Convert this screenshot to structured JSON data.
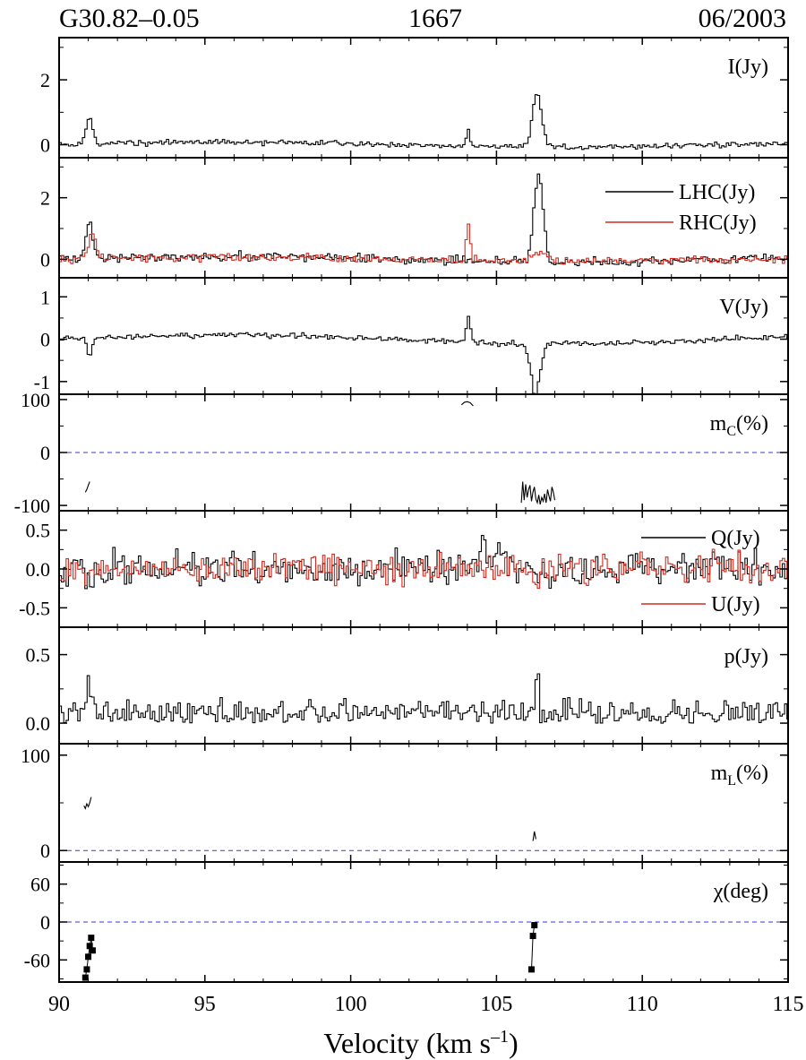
{
  "header": {
    "source": "G30.82–0.05",
    "frequency": "1667",
    "date": "06/2003"
  },
  "colors": {
    "primary": "#000000",
    "secondary": "#d42a1e",
    "zero_line": "#3a3ad0"
  },
  "chart_data": [
    {
      "type": "line",
      "panel": "I",
      "ylim": [
        -0.4,
        3.3
      ],
      "yticks": [
        0,
        2
      ],
      "ytick_labels": [
        "0",
        "2"
      ],
      "series": [
        {
          "name": "I(Jy)",
          "color": "#000000",
          "style": "step",
          "baseline": 0.0,
          "noise": 0.05,
          "drift": 0.08,
          "peaks": [
            [
              91.0,
              0.12,
              0.8
            ],
            [
              104.0,
              0.06,
              0.55
            ],
            [
              106.35,
              0.16,
              1.65
            ]
          ]
        }
      ],
      "labels": [
        {
          "text": "I(Jy)"
        }
      ]
    },
    {
      "type": "line",
      "panel": "LHC/RHC",
      "ylim": [
        -0.6,
        3.3
      ],
      "yticks": [
        0,
        2
      ],
      "ytick_labels": [
        "0",
        "2"
      ],
      "series": [
        {
          "name": "LHC(Jy)",
          "color": "#000000",
          "style": "step",
          "baseline": 0.0,
          "noise": 0.09,
          "drift": 0.1,
          "peaks": [
            [
              91.0,
              0.12,
              1.2
            ],
            [
              106.4,
              0.16,
              2.9
            ]
          ]
        },
        {
          "name": "RHC(Jy)",
          "color": "#d42a1e",
          "style": "step",
          "baseline": 0.0,
          "noise": 0.08,
          "drift": 0.05,
          "peaks": [
            [
              91.1,
              0.12,
              0.9
            ],
            [
              104.0,
              0.07,
              1.15
            ],
            [
              106.4,
              0.2,
              0.3
            ]
          ]
        }
      ],
      "legend": "top-right"
    },
    {
      "type": "line",
      "panel": "V",
      "ylim": [
        -1.3,
        1.45
      ],
      "yticks": [
        -1,
        0,
        1
      ],
      "ytick_labels": [
        "-1",
        "0",
        "1"
      ],
      "series": [
        {
          "name": "V(Jy)",
          "color": "#000000",
          "style": "step",
          "baseline": 0.0,
          "noise": 0.04,
          "drift": 0.1,
          "peaks": [
            [
              91.0,
              0.08,
              -0.4
            ],
            [
              104.0,
              0.07,
              0.6
            ],
            [
              106.3,
              0.16,
              -1.2
            ]
          ]
        }
      ],
      "labels": [
        {
          "text": "V(Jy)"
        }
      ]
    },
    {
      "type": "line",
      "panel": "mC",
      "ylim": [
        -110,
        110
      ],
      "yticks": [
        -100,
        0,
        100
      ],
      "ytick_labels": [
        "-100",
        "0",
        "100"
      ],
      "zero_line": 0,
      "series": [
        {
          "name": "mC1",
          "color": "#000000",
          "style": "line",
          "x": [
            90.9,
            90.95,
            91.0,
            91.05
          ],
          "y": [
            -75,
            -70,
            -62,
            -55
          ]
        },
        {
          "name": "mC2",
          "color": "#000000",
          "style": "line",
          "x": [
            103.8,
            103.9,
            104.0,
            104.1,
            104.2
          ],
          "y": [
            90,
            95,
            96,
            94,
            88
          ]
        },
        {
          "name": "mC3",
          "color": "#000000",
          "style": "line",
          "x": [
            105.85,
            105.9,
            105.95,
            106.0,
            106.05,
            106.1,
            106.15,
            106.2,
            106.25,
            106.3,
            106.35,
            106.4,
            106.45,
            106.5,
            106.55,
            106.6,
            106.65,
            106.7,
            106.75,
            106.8,
            106.85,
            106.9,
            106.95,
            107.0
          ],
          "y": [
            -95,
            -55,
            -90,
            -60,
            -85,
            -70,
            -62,
            -92,
            -75,
            -65,
            -88,
            -95,
            -80,
            -98,
            -85,
            -92,
            -78,
            -95,
            -70,
            -82,
            -92,
            -65,
            -75,
            -90
          ]
        }
      ],
      "labels": [
        {
          "text": "m",
          "sub": "C",
          "suffix": "(%)"
        }
      ]
    },
    {
      "type": "line",
      "panel": "Q/U",
      "ylim": [
        -0.75,
        0.75
      ],
      "yticks": [
        -0.5,
        0.0,
        0.5
      ],
      "ytick_labels": [
        "-0.5",
        "0.0",
        "0.5"
      ],
      "series": [
        {
          "name": "Q(Jy)",
          "color": "#000000",
          "style": "step",
          "baseline": 0.0,
          "noise": 0.14,
          "drift": 0.0,
          "peaks": [
            [
              91.0,
              0.1,
              -0.3
            ],
            [
              104.8,
              0.5,
              0.2
            ]
          ]
        },
        {
          "name": "U(Jy)",
          "color": "#d42a1e",
          "style": "step",
          "baseline": 0.0,
          "noise": 0.12,
          "drift": 0.0,
          "peaks": [
            [
              106.3,
              0.08,
              -0.35
            ]
          ]
        }
      ],
      "legend": "right"
    },
    {
      "type": "line",
      "panel": "p",
      "ylim": [
        -0.15,
        0.7
      ],
      "yticks": [
        0.0,
        0.5
      ],
      "ytick_labels": [
        "0.0",
        "0.5"
      ],
      "series": [
        {
          "name": "p(Jy)",
          "color": "#000000",
          "style": "step",
          "baseline": 0.07,
          "noise": 0.06,
          "drift": 0.0,
          "positive": true,
          "peaks": [
            [
              91.0,
              0.1,
              0.22
            ],
            [
              106.35,
              0.06,
              0.32
            ]
          ]
        }
      ],
      "labels": [
        {
          "text": "p(Jy)"
        }
      ]
    },
    {
      "type": "line",
      "panel": "mL",
      "ylim": [
        -12,
        112
      ],
      "yticks": [
        0,
        100
      ],
      "ytick_labels": [
        "0",
        "100"
      ],
      "zero_line": 0,
      "series": [
        {
          "name": "mL1",
          "color": "#000000",
          "style": "line",
          "x": [
            90.85,
            90.9,
            90.95,
            91.0,
            91.05,
            91.1
          ],
          "y": [
            47,
            44,
            49,
            46,
            50,
            56
          ]
        },
        {
          "name": "mL2",
          "color": "#000000",
          "style": "line",
          "x": [
            106.25,
            106.3,
            106.35
          ],
          "y": [
            10,
            20,
            12
          ]
        }
      ],
      "labels": [
        {
          "text": "m",
          "sub": "L",
          "suffix": "(%)"
        }
      ]
    },
    {
      "type": "scatter",
      "panel": "chi",
      "ylim": [
        -95,
        95
      ],
      "yticks": [
        -60,
        0,
        60
      ],
      "ytick_labels": [
        "-60",
        "0",
        "60"
      ],
      "zero_line": 0,
      "series": [
        {
          "name": "chi1",
          "color": "#000000",
          "style": "points",
          "x": [
            90.9,
            90.95,
            91.0,
            91.05,
            91.1,
            91.15
          ],
          "y": [
            -88,
            -75,
            -55,
            -38,
            -25,
            -45
          ]
        },
        {
          "name": "chi2",
          "color": "#000000",
          "style": "points",
          "x": [
            106.2,
            106.25,
            106.3
          ],
          "y": [
            -75,
            -22,
            -5
          ]
        }
      ],
      "labels": [
        {
          "text": "χ(deg)"
        }
      ]
    }
  ],
  "x_axis": {
    "xlim": [
      90,
      115
    ],
    "ticks": [
      90,
      95,
      100,
      105,
      110,
      115
    ],
    "tick_labels": [
      "90",
      "95",
      "100",
      "105",
      "110",
      "115"
    ],
    "label_main": "Velocity (km s",
    "label_sup": "–1",
    "label_end": ")"
  }
}
